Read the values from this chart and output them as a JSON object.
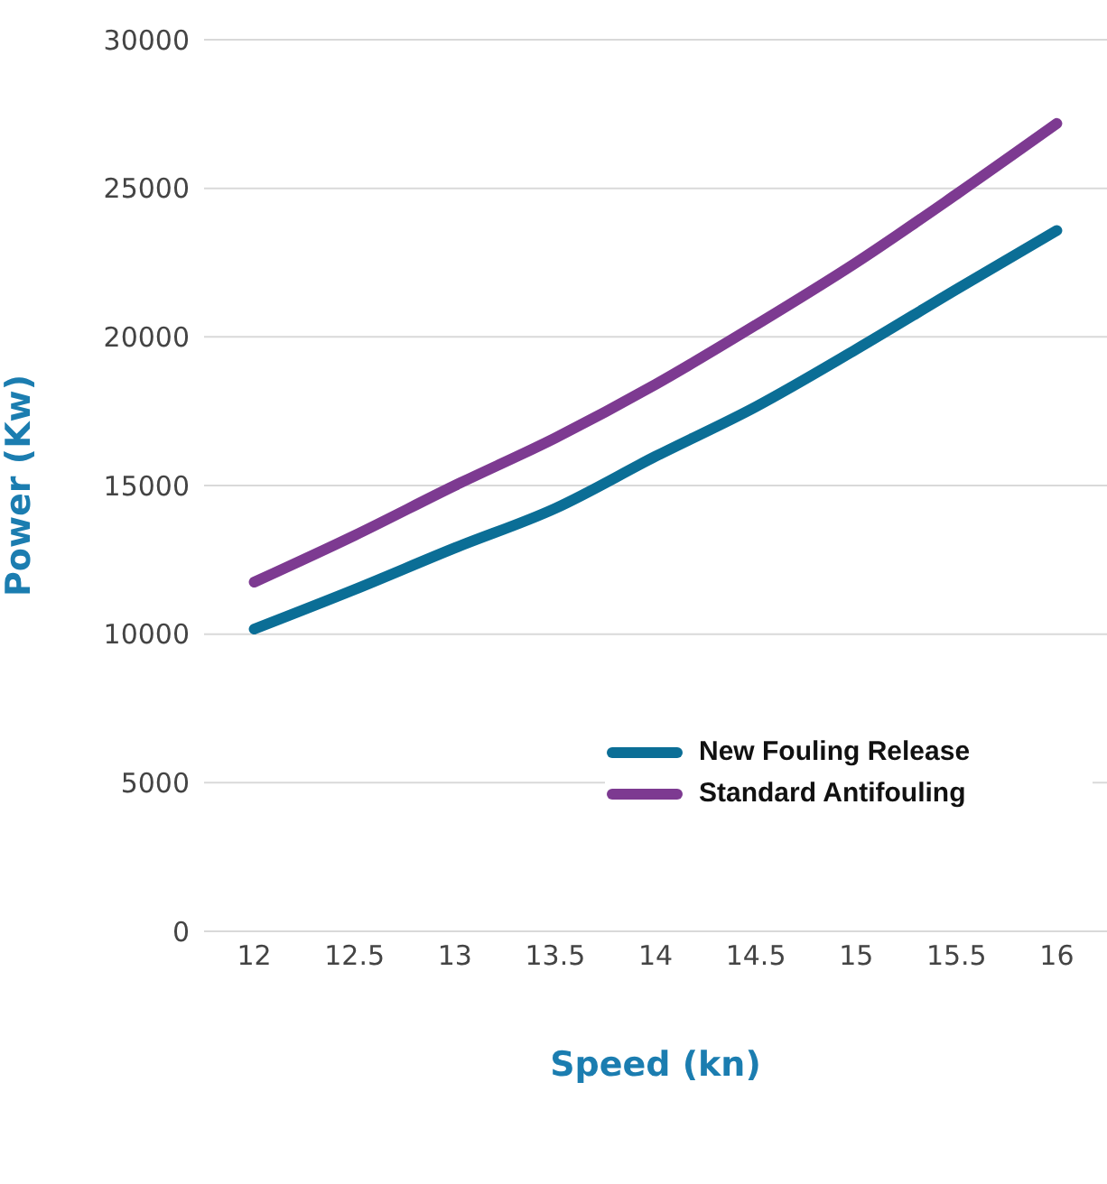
{
  "chart_data": {
    "type": "line",
    "xlabel": "Speed (kn)",
    "ylabel": "Power (Kw)",
    "x": [
      12,
      12.5,
      13,
      13.5,
      14,
      14.5,
      15,
      15.5,
      16
    ],
    "series": [
      {
        "name": "New Fouling Release",
        "color": "#0b6e96",
        "values": [
          10170,
          11500,
          12900,
          14230,
          15980,
          17650,
          19580,
          21600,
          23580
        ]
      },
      {
        "name": "Standard Antifouling",
        "color": "#7d3a91",
        "values": [
          11750,
          13320,
          15000,
          16600,
          18400,
          20400,
          22500,
          24800,
          27180
        ]
      }
    ],
    "xlim": [
      11.75,
      16.25
    ],
    "xticks": [
      12,
      12.5,
      13,
      13.5,
      14,
      14.5,
      15,
      15.5,
      16
    ],
    "ylim": [
      0,
      30000
    ],
    "yticks": [
      0,
      5000,
      10000,
      15000,
      20000,
      25000,
      30000
    ],
    "grid": "y",
    "legend": "right",
    "marker": "none",
    "line_style": "solid"
  }
}
